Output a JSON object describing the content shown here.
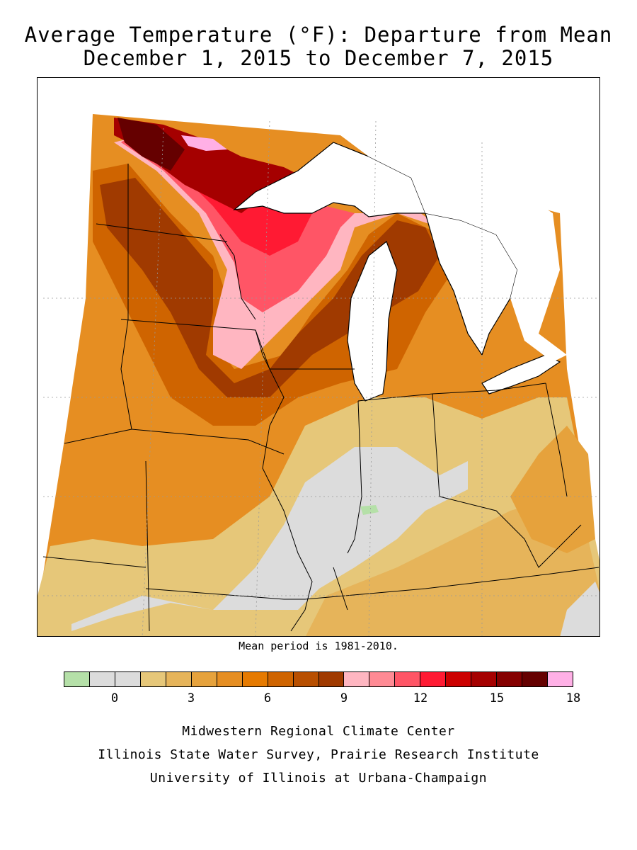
{
  "title_line1": "Average Temperature (°F): Departure from Mean",
  "title_line2": "December 1, 2015 to December 7, 2015",
  "mean_period_note": "Mean period is 1981-2010.",
  "legend": {
    "colors": [
      "#b5e0a8",
      "#dcdcdc",
      "#dcdcdc",
      "#e6c779",
      "#e6b45a",
      "#e6a23c",
      "#e68e22",
      "#e67a00",
      "#cf6400",
      "#b84f00",
      "#a03a00",
      "#ffb6c1",
      "#ff8a94",
      "#ff5566",
      "#ff1a33",
      "#cc0000",
      "#a50000",
      "#850000",
      "#650000",
      "#ffb0e6"
    ],
    "tick_labels": [
      "0",
      "3",
      "6",
      "9",
      "12",
      "15",
      "18"
    ],
    "tick_values": [
      0,
      3,
      6,
      9,
      12,
      15,
      18
    ],
    "range": [
      -2,
      18
    ]
  },
  "credits": [
    "Midwestern Regional Climate Center",
    "Illinois State Water Survey, Prairie Research Institute",
    "University of Illinois at Urbana-Champaign"
  ]
}
